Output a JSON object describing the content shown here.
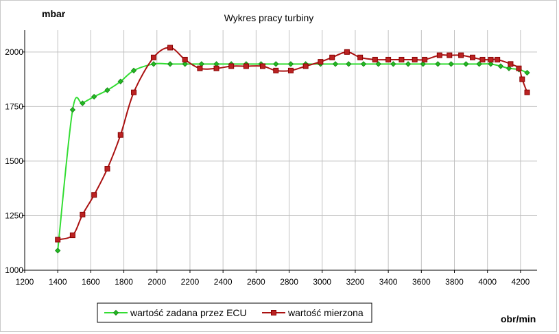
{
  "chart_data": {
    "type": "line",
    "title": "Wykres pracy turbiny",
    "ylabel": "mbar",
    "xlabel": "obr/min",
    "xlim": [
      1200,
      4300
    ],
    "ylim": [
      1000,
      2100
    ],
    "x_ticks": [
      "1200",
      "1400",
      "1600",
      "1800",
      "2000",
      "2200",
      "2400",
      "2600",
      "2800",
      "3000",
      "3200",
      "3400",
      "3600",
      "3800",
      "4000",
      "4200"
    ],
    "y_ticks": [
      "1000",
      "1250",
      "1500",
      "1750",
      "2000"
    ],
    "legend_position": "bottom-left",
    "grid": true,
    "series": [
      {
        "name": "wartość zadana przez ECU",
        "color": "#33dd33",
        "marker": "diamond",
        "marker_fill": "#22bb22",
        "x": [
          1400,
          1490,
          1550,
          1620,
          1700,
          1780,
          1860,
          1980,
          2080,
          2170,
          2270,
          2360,
          2450,
          2540,
          2630,
          2720,
          2810,
          2900,
          2990,
          3080,
          3160,
          3250,
          3340,
          3430,
          3520,
          3610,
          3700,
          3780,
          3870,
          3950,
          4020,
          4080,
          4130,
          4190,
          4240
        ],
        "y": [
          1090,
          1735,
          1765,
          1795,
          1825,
          1865,
          1915,
          1945,
          1945,
          1945,
          1945,
          1945,
          1945,
          1945,
          1945,
          1945,
          1945,
          1945,
          1945,
          1945,
          1945,
          1945,
          1945,
          1945,
          1945,
          1945,
          1945,
          1945,
          1945,
          1945,
          1945,
          1935,
          1925,
          1920,
          1905
        ]
      },
      {
        "name": "wartość mierzona",
        "color": "#aa1111",
        "marker": "square",
        "marker_fill": "#bb2222",
        "x": [
          1400,
          1490,
          1550,
          1620,
          1700,
          1780,
          1860,
          1980,
          2080,
          2170,
          2260,
          2360,
          2450,
          2540,
          2640,
          2720,
          2810,
          2900,
          2990,
          3060,
          3150,
          3230,
          3320,
          3400,
          3480,
          3560,
          3620,
          3710,
          3770,
          3840,
          3910,
          3970,
          4020,
          4060,
          4140,
          4190,
          4210,
          4240
        ],
        "y": [
          1140,
          1160,
          1255,
          1345,
          1465,
          1620,
          1815,
          1975,
          2020,
          1965,
          1925,
          1925,
          1935,
          1935,
          1935,
          1915,
          1915,
          1935,
          1955,
          1975,
          2000,
          1975,
          1965,
          1965,
          1965,
          1965,
          1965,
          1985,
          1985,
          1985,
          1975,
          1965,
          1965,
          1965,
          1945,
          1925,
          1875,
          1815
        ]
      }
    ]
  }
}
